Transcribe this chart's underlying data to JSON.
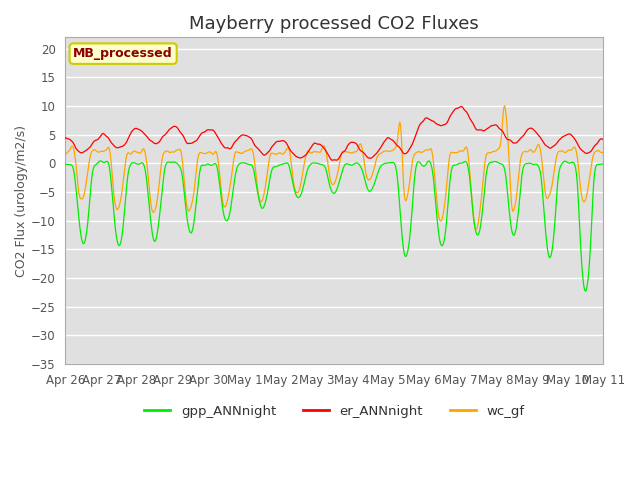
{
  "title": "Mayberry processed CO2 Fluxes",
  "ylabel": "CO2 Flux (urology/m2/s)",
  "ylim": [
    -35,
    22
  ],
  "yticks": [
    -35,
    -30,
    -25,
    -20,
    -15,
    -10,
    -5,
    0,
    5,
    10,
    15,
    20
  ],
  "fig_bg_color": "#ffffff",
  "plot_bg_color": "#e0e0e0",
  "legend_label": "MB_processed",
  "legend_text_color": "#8b0000",
  "legend_bg_color": "#ffffcc",
  "legend_edge_color": "#cccc00",
  "line_green": "#00ee00",
  "line_red": "#ff0000",
  "line_orange": "#ffa500",
  "series_labels": [
    "gpp_ANNnight",
    "er_ANNnight",
    "wc_gf"
  ],
  "n_points": 720,
  "xtick_labels": [
    "Apr 26",
    "Apr 27",
    "Apr 28",
    "Apr 29",
    "Apr 30",
    "May 1",
    "May 2",
    "May 3",
    "May 4",
    "May 5",
    "May 6",
    "May 7",
    "May 8",
    "May 9",
    "May 10",
    "May 11"
  ],
  "title_fontsize": 13,
  "axis_label_fontsize": 9,
  "tick_fontsize": 8.5
}
